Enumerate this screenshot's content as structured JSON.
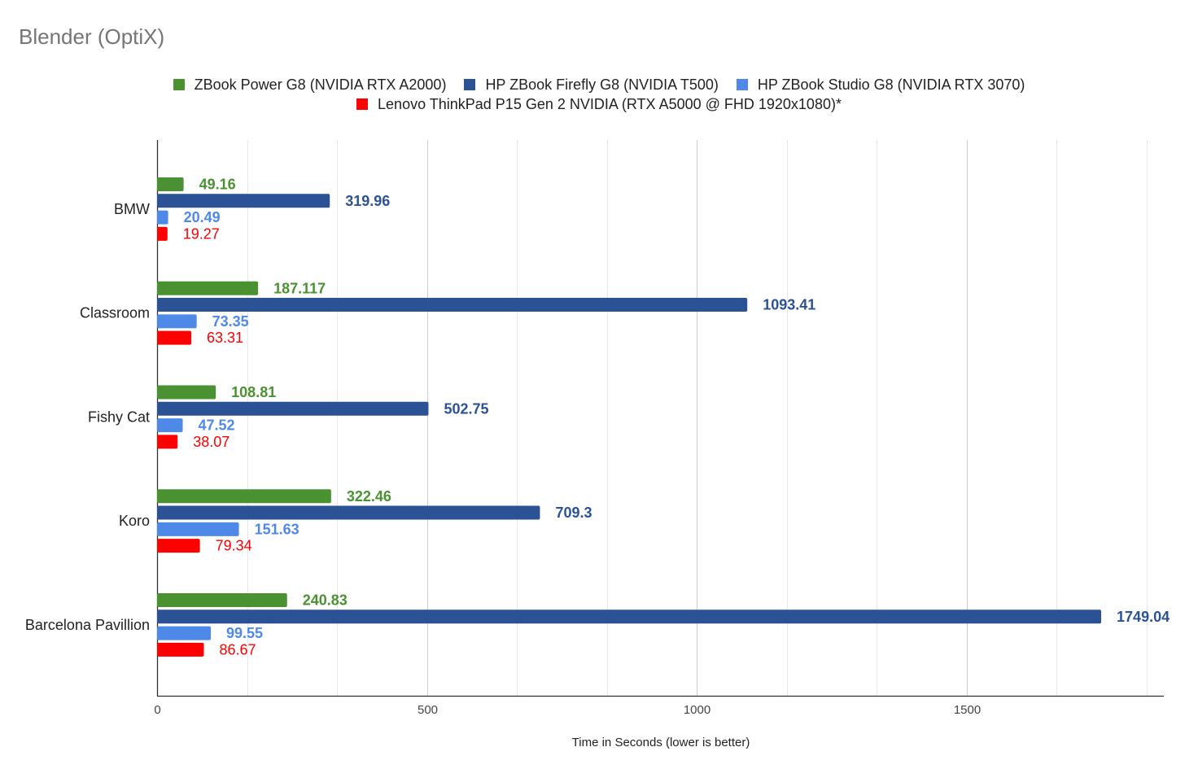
{
  "chart_data": {
    "type": "bar",
    "orientation": "horizontal",
    "title": "Blender (OptiX)",
    "xlabel": "Time in Seconds (lower is better)",
    "ylabel": "",
    "categories": [
      "BMW",
      "Classroom",
      "Fishy Cat",
      "Koro",
      "Barcelona Pavillion"
    ],
    "series": [
      {
        "name": "ZBook Power G8 (NVIDIA RTX A2000)",
        "color": "#4a9231",
        "labels": [
          "49.16",
          "187.117",
          "108.81",
          "322.46",
          "240.83"
        ],
        "values": [
          49.16,
          187.117,
          108.81,
          322.46,
          240.83
        ],
        "label_bold": true
      },
      {
        "name": "HP ZBook Firefly G8 (NVIDIA T500)",
        "color": "#2c5296",
        "labels": [
          "319.96",
          "1093.41",
          "502.75",
          "709.3",
          "1749.04"
        ],
        "values": [
          319.96,
          1093.41,
          502.75,
          709.3,
          1749.04
        ],
        "label_bold": true
      },
      {
        "name": "HP ZBook Studio G8 (NVIDIA RTX 3070)",
        "color": "#4f89e8",
        "labels": [
          "20.49",
          "73.35",
          "47.52",
          "151.63",
          "99.55"
        ],
        "values": [
          20.49,
          73.35,
          47.52,
          151.63,
          99.55
        ],
        "label_bold": true
      },
      {
        "name": "Lenovo ThinkPad P15 Gen 2 NVIDIA (RTX A5000 @ FHD 1920x1080)*",
        "color": "#ff0000",
        "labels": [
          "19.27",
          "63.31",
          "38.07",
          "79.34",
          "86.67"
        ],
        "values": [
          19.27,
          63.31,
          38.07,
          79.34,
          86.67
        ],
        "label_bold": false
      }
    ],
    "xlim": [
      0,
      1850
    ],
    "xticks": [
      0,
      500,
      1000,
      1500
    ],
    "xtick_labels": [
      "0",
      "500",
      "1000",
      "1500"
    ],
    "minor_gridlines": [
      166.67,
      333.33,
      666.67,
      833.33,
      1166.67,
      1333.33,
      1666.67,
      1833.33
    ],
    "grid": true,
    "legend_position": "top"
  }
}
